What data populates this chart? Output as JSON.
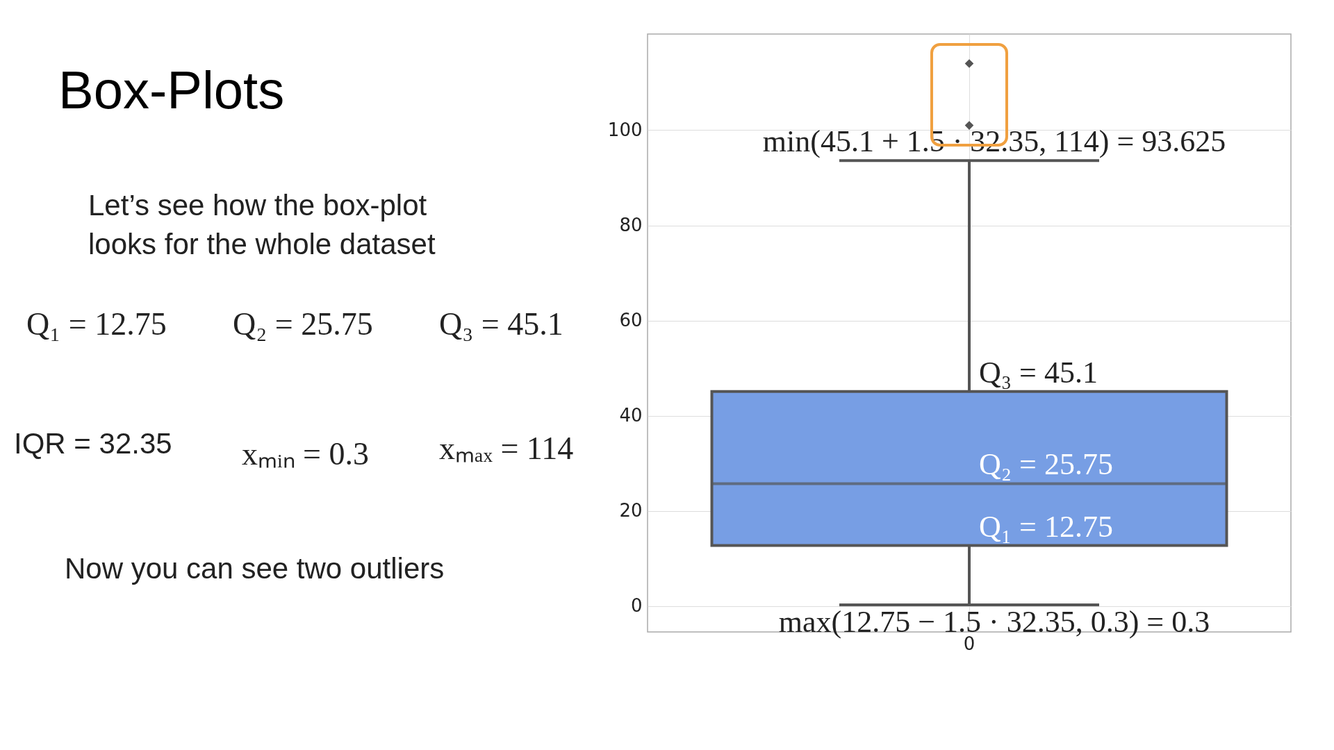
{
  "chart_data": {
    "type": "box",
    "title": "Box-Plots",
    "categories": [
      "0"
    ],
    "color": "#779ee4",
    "boxes": [
      {
        "low": 0.3,
        "q1": 12.75,
        "median": 25.75,
        "q3": 45.1,
        "high": 93.625,
        "outliers": [
          101,
          114
        ]
      }
    ],
    "ylim": [
      -5.4,
      120.2
    ],
    "yticks": [
      0,
      20,
      40,
      60,
      80,
      100
    ],
    "grid": true,
    "annotations": [
      "Let’s see how the box-plot looks for the whole dataset",
      "Q₁ = 12.75",
      "Q₂ = 25.75",
      "Q₃ = 45.1",
      "IQR = 32.35",
      "xₘᵢₙ = 0.3",
      "xₘₐₓ = 114",
      "Now you can see two outliers",
      {
        "text": "min(45.1 + 1.5 · 32.35, 114) = 93.625",
        "x": "0",
        "y": 93.625
      },
      {
        "text": "Q₃ = 45.1",
        "x": "0",
        "y": 45.1
      },
      {
        "text": "Q₂ = 25.75",
        "x": "0",
        "y": 25.75
      },
      {
        "text": "Q₁ = 12.75",
        "x": "0",
        "y": 12.75
      },
      {
        "text": "max(12.75 − 1.5 · 32.35, 0.3) = 0.3",
        "x": "0",
        "y": 0.3
      }
    ]
  }
}
